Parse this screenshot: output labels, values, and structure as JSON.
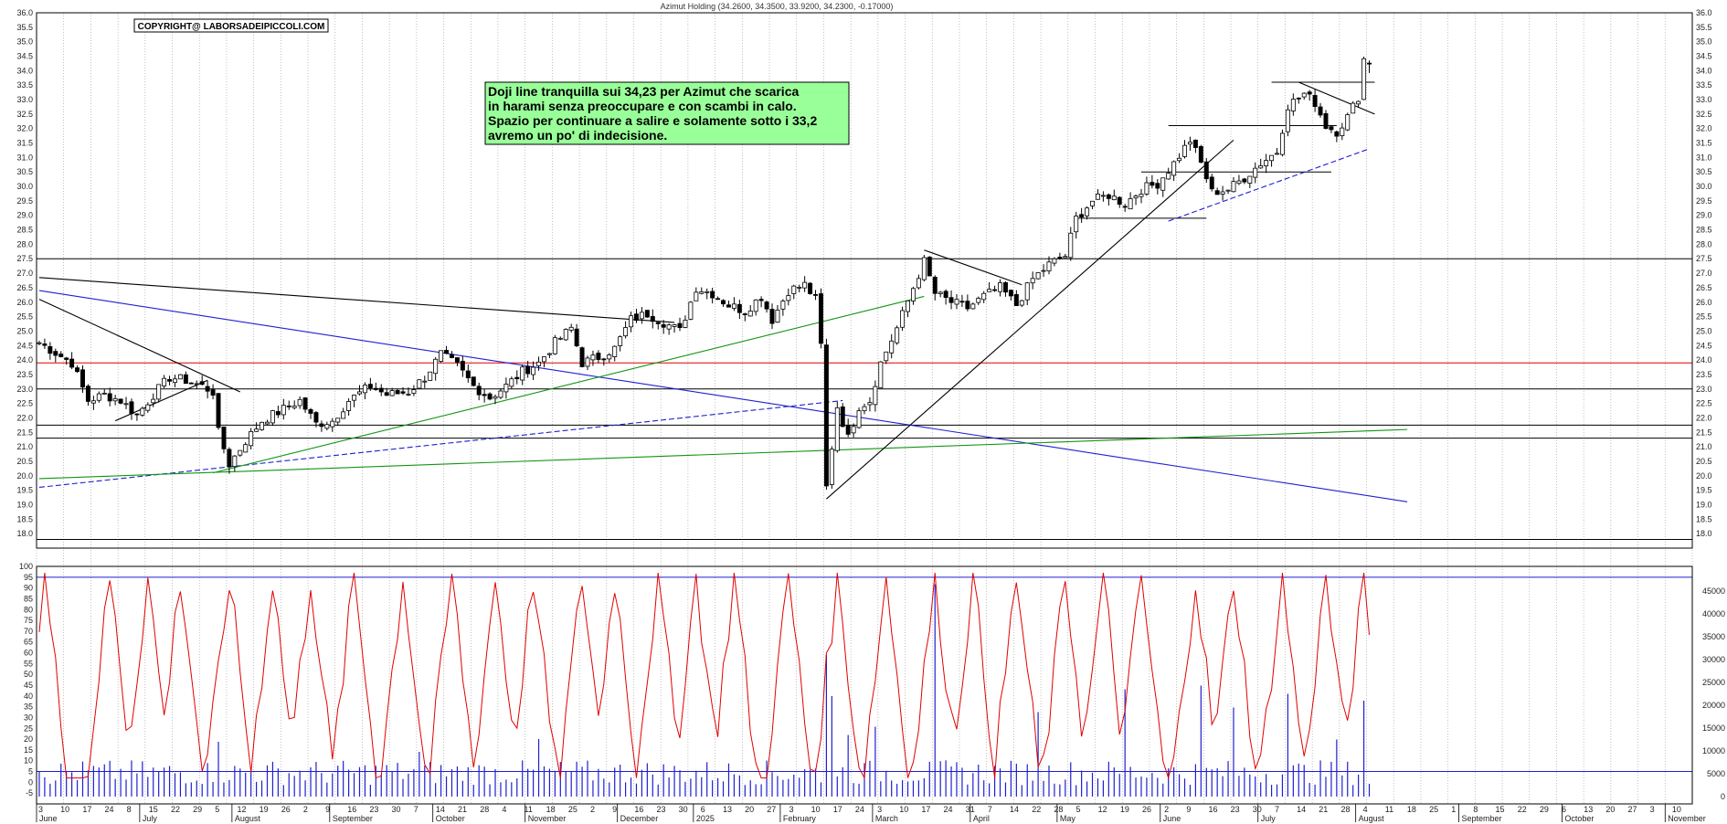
{
  "title": "Azimut Holding (34.2600, 34.3500, 33.9200, 34.2300, -0.17000)",
  "copyright": "COPYRIGHT@ LABORSADEIPICCOLI.COM",
  "annotation": [
    "Doji line tranquilla sui 34,23 per Azimut che scarica",
    "in harami senza preoccupare e con scambi in calo.",
    "Spazio per continuare a salire e solamente sotto i 33,2",
    "avremo un po' di indecisione."
  ],
  "colors": {
    "price_bars": "#000000",
    "oscillator": "#e00000",
    "volume": "#1f1fd0",
    "support_red": "#e00000",
    "trend_blue": "#1f1fd0",
    "trend_green": "#129512",
    "note_bg": "#99ff99",
    "grid": "#9a9a9a"
  },
  "chart_data": [
    {
      "type": "candlestick",
      "name": "price",
      "ylim": [
        17.5,
        36.0
      ],
      "y_ticks": [
        "18.0",
        "18.5",
        "19.0",
        "19.5",
        "20.0",
        "20.5",
        "21.0",
        "21.5",
        "22.0",
        "22.5",
        "23.0",
        "23.5",
        "24.0",
        "24.5",
        "25.0",
        "25.5",
        "26.0",
        "26.5",
        "27.0",
        "27.5",
        "28.0",
        "28.5",
        "29.0",
        "29.5",
        "30.0",
        "30.5",
        "31.0",
        "31.5",
        "32.0",
        "32.5",
        "33.0",
        "33.5",
        "34.0",
        "34.5",
        "35.0",
        "35.5",
        "36.0"
      ],
      "last_bar": {
        "open": 34.26,
        "high": 34.35,
        "low": 33.92,
        "close": 34.23,
        "change": -0.17
      },
      "close_anchors": [
        [
          0,
          24.6
        ],
        [
          6,
          23.9
        ],
        [
          9,
          22.6
        ],
        [
          12,
          22.8
        ],
        [
          15,
          22.6
        ],
        [
          18,
          22.1
        ],
        [
          21,
          22.8
        ],
        [
          24,
          23.4
        ],
        [
          27,
          23.3
        ],
        [
          30,
          23.1
        ],
        [
          32,
          22.9
        ],
        [
          33,
          21.5
        ],
        [
          35,
          20.4
        ],
        [
          38,
          21.2
        ],
        [
          41,
          21.9
        ],
        [
          44,
          22.2
        ],
        [
          48,
          22.6
        ],
        [
          51,
          21.8
        ],
        [
          54,
          21.9
        ],
        [
          57,
          22.6
        ],
        [
          61,
          23.1
        ],
        [
          64,
          22.8
        ],
        [
          68,
          22.9
        ],
        [
          71,
          23.4
        ],
        [
          74,
          24.2
        ],
        [
          77,
          23.8
        ],
        [
          80,
          23.1
        ],
        [
          83,
          22.7
        ],
        [
          86,
          23.1
        ],
        [
          89,
          23.6
        ],
        [
          92,
          23.9
        ],
        [
          95,
          24.6
        ],
        [
          98,
          25.1
        ],
        [
          100,
          23.9
        ],
        [
          103,
          24.1
        ],
        [
          106,
          24.4
        ],
        [
          109,
          25.4
        ],
        [
          112,
          25.6
        ],
        [
          115,
          25.3
        ],
        [
          118,
          25.0
        ],
        [
          121,
          26.5
        ],
        [
          124,
          26.3
        ],
        [
          127,
          25.9
        ],
        [
          130,
          25.7
        ],
        [
          133,
          26.2
        ],
        [
          135,
          25.4
        ],
        [
          138,
          26.4
        ],
        [
          141,
          26.6
        ],
        [
          143,
          26.1
        ],
        [
          144,
          24.5
        ],
        [
          145,
          19.6
        ],
        [
          147,
          22.4
        ],
        [
          149,
          21.3
        ],
        [
          151,
          22.4
        ],
        [
          153,
          22.6
        ],
        [
          155,
          23.9
        ],
        [
          158,
          25.1
        ],
        [
          161,
          26.5
        ],
        [
          163,
          27.4
        ],
        [
          165,
          26.3
        ],
        [
          168,
          26.0
        ],
        [
          171,
          25.8
        ],
        [
          174,
          26.2
        ],
        [
          177,
          26.5
        ],
        [
          180,
          25.9
        ],
        [
          183,
          26.8
        ],
        [
          186,
          27.3
        ],
        [
          189,
          27.6
        ],
        [
          191,
          28.9
        ],
        [
          194,
          29.5
        ],
        [
          197,
          29.7
        ],
        [
          200,
          29.4
        ],
        [
          203,
          29.9
        ],
        [
          206,
          30.1
        ],
        [
          209,
          30.8
        ],
        [
          212,
          31.6
        ],
        [
          214,
          30.8
        ],
        [
          216,
          29.8
        ],
        [
          219,
          29.9
        ],
        [
          222,
          30.3
        ],
        [
          225,
          30.8
        ],
        [
          228,
          31.2
        ],
        [
          230,
          32.8
        ],
        [
          233,
          33.2
        ],
        [
          235,
          32.9
        ],
        [
          237,
          32.1
        ],
        [
          239,
          31.9
        ],
        [
          241,
          32.4
        ],
        [
          243,
          33.1
        ],
        [
          244,
          34.4
        ],
        [
          245,
          34.23
        ]
      ],
      "horizontal_levels": [
        {
          "price": 23.9,
          "color": "#e00000"
        },
        {
          "price": 27.5,
          "color": "#000000"
        },
        {
          "price": 23.0,
          "color": "#000000"
        },
        {
          "price": 21.75,
          "color": "#000000"
        },
        {
          "price": 21.3,
          "color": "#000000"
        },
        {
          "price": 17.8,
          "color": "#000000"
        }
      ],
      "segment_levels": [
        {
          "price": 33.6,
          "from_bar": 227,
          "to_bar": 246
        },
        {
          "price": 32.1,
          "from_bar": 208,
          "to_bar": 239
        },
        {
          "price": 30.5,
          "from_bar": 203,
          "to_bar": 238
        },
        {
          "price": 28.9,
          "from_bar": 191,
          "to_bar": 215
        }
      ],
      "trendlines": [
        {
          "from": [
            0,
            26.85
          ],
          "to": [
            117,
            25.3
          ],
          "color": "#000000",
          "dashed": false
        },
        {
          "from": [
            0,
            26.1
          ],
          "to": [
            37,
            22.9
          ],
          "color": "#000000",
          "dashed": false
        },
        {
          "from": [
            14,
            21.9
          ],
          "to": [
            31,
            23.3
          ],
          "color": "#000000",
          "dashed": false
        },
        {
          "from": [
            0,
            26.4
          ],
          "to": [
            252,
            19.1
          ],
          "color": "#1f1fd0",
          "dashed": false
        },
        {
          "from": [
            0,
            19.6
          ],
          "to": [
            148,
            22.6
          ],
          "color": "#1f1fd0",
          "dashed": true
        },
        {
          "from": [
            32,
            20.1
          ],
          "to": [
            163,
            26.2
          ],
          "color": "#129512",
          "dashed": false
        },
        {
          "from": [
            0,
            19.9
          ],
          "to": [
            252,
            21.6
          ],
          "color": "#129512",
          "dashed": false
        },
        {
          "from": [
            145,
            19.2
          ],
          "to": [
            220,
            31.6
          ],
          "color": "#000000",
          "dashed": false
        },
        {
          "from": [
            163,
            27.8
          ],
          "to": [
            181,
            26.6
          ],
          "color": "#000000",
          "dashed": false
        },
        {
          "from": [
            208,
            28.8
          ],
          "to": [
            245,
            31.3
          ],
          "color": "#1f1fd0",
          "dashed": true
        },
        {
          "from": [
            232,
            33.6
          ],
          "to": [
            246,
            32.5
          ],
          "color": "#000000",
          "dashed": false
        }
      ]
    },
    {
      "type": "line",
      "name": "oscillator",
      "ylim": [
        -10,
        100
      ],
      "y_ticks": [
        "100",
        "95",
        "90",
        "85",
        "80",
        "75",
        "70",
        "65",
        "60",
        "55",
        "50",
        "45",
        "40",
        "35",
        "30",
        "25",
        "20",
        "15",
        "10",
        "5",
        "0",
        "-5"
      ],
      "reference_levels": [
        95,
        5
      ],
      "cycle_peaks_at_bar": [
        1,
        13,
        20,
        26,
        35,
        43,
        50,
        58,
        67,
        76,
        84,
        91,
        100,
        106,
        114,
        121,
        128,
        138,
        147,
        156,
        165,
        172,
        180,
        189,
        196,
        203,
        213,
        220,
        229,
        237,
        244
      ]
    },
    {
      "type": "bar",
      "name": "volume",
      "ylim": [
        0,
        50000
      ],
      "y_ticks": [
        "45000",
        "40000",
        "35000",
        "30000",
        "25000",
        "20000",
        "15000",
        "10000",
        "5000",
        "0"
      ],
      "spikes": [
        [
          0,
          5500
        ],
        [
          33,
          12000
        ],
        [
          70,
          9800
        ],
        [
          92,
          12600
        ],
        [
          145,
          31000
        ],
        [
          146,
          22000
        ],
        [
          149,
          13500
        ],
        [
          154,
          15300
        ],
        [
          165,
          46500
        ],
        [
          184,
          18500
        ],
        [
          200,
          23500
        ],
        [
          214,
          24300
        ],
        [
          220,
          19500
        ],
        [
          230,
          22500
        ],
        [
          239,
          12500
        ],
        [
          244,
          21000
        ],
        [
          245,
          2800
        ]
      ]
    }
  ],
  "x_axis": {
    "day_ticks": [
      "3",
      "10",
      "17",
      "24",
      "8",
      "15",
      "22",
      "29",
      "5",
      "12",
      "19",
      "26",
      "2",
      "9",
      "16",
      "23",
      "30",
      "7",
      "14",
      "21",
      "28",
      "4",
      "11",
      "18",
      "25",
      "2",
      "9",
      "16",
      "23",
      "30",
      "6",
      "13",
      "20",
      "27",
      "3",
      "10",
      "17",
      "24",
      "3",
      "10",
      "17",
      "24",
      "31",
      "7",
      "14",
      "22",
      "28",
      "5",
      "12",
      "19",
      "26",
      "2",
      "9",
      "16",
      "23",
      "30",
      "7",
      "14",
      "21",
      "28",
      "4",
      "11",
      "18",
      "25",
      "1",
      "8",
      "15",
      "22",
      "29",
      "6",
      "13",
      "20",
      "27",
      "3",
      "10"
    ],
    "months": [
      {
        "label": "June",
        "at_bar": 0
      },
      {
        "label": "July",
        "at_bar": 19
      },
      {
        "label": "August",
        "at_bar": 36
      },
      {
        "label": "September",
        "at_bar": 54
      },
      {
        "label": "October",
        "at_bar": 73
      },
      {
        "label": "November",
        "at_bar": 90
      },
      {
        "label": "December",
        "at_bar": 107
      },
      {
        "label": "2025",
        "at_bar": 121
      },
      {
        "label": "February",
        "at_bar": 137
      },
      {
        "label": "March",
        "at_bar": 154
      },
      {
        "label": "April",
        "at_bar": 172
      },
      {
        "label": "May",
        "at_bar": 188
      },
      {
        "label": "June",
        "at_bar": 207
      },
      {
        "label": "July",
        "at_bar": 225
      },
      {
        "label": "August",
        "at_bar": 243
      },
      {
        "label": "September",
        "at_bar": 262
      },
      {
        "label": "October",
        "at_bar": 281
      },
      {
        "label": "November",
        "at_bar": 300
      }
    ],
    "total_bars": 305
  }
}
